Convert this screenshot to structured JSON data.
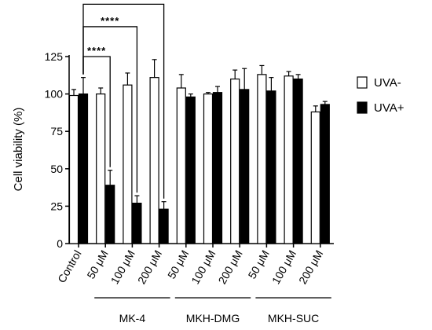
{
  "chart_data": {
    "type": "bar",
    "ylabel": "Cell viability (%)",
    "ylim": [
      0,
      125
    ],
    "yticks": [
      0,
      25,
      50,
      75,
      100,
      125
    ],
    "categories": [
      "Control",
      "50 μM",
      "100 μM",
      "200 μM",
      "50 μM",
      "100 μM",
      "200 μM",
      "50 μM",
      "100 μM",
      "200 μM"
    ],
    "groups": [
      {
        "label": "MK-4",
        "from": 1,
        "to": 3
      },
      {
        "label": "MKH-DMG",
        "from": 4,
        "to": 6
      },
      {
        "label": "MKH-SUC",
        "from": 7,
        "to": 9
      }
    ],
    "series": [
      {
        "name": "UVA-",
        "color": "#ffffff",
        "values": [
          99,
          100,
          106,
          111,
          104,
          100,
          110,
          113,
          112,
          88
        ],
        "errors": [
          4,
          4,
          8,
          12,
          9,
          1,
          6,
          6,
          3,
          4
        ]
      },
      {
        "name": "UVA+",
        "color": "#000000",
        "values": [
          100,
          39,
          27,
          23,
          98,
          101,
          103,
          102,
          110,
          93
        ],
        "errors": [
          11,
          10,
          5,
          5,
          2,
          4,
          14,
          9,
          3,
          2
        ]
      }
    ],
    "significance": [
      {
        "label": "****",
        "from": 0,
        "to": 1,
        "height": 125
      },
      {
        "label": "****",
        "from": 0,
        "to": 2,
        "height": 145
      },
      {
        "label": "****",
        "from": 0,
        "to": 3,
        "height": 160
      }
    ],
    "legend_position": "right"
  }
}
